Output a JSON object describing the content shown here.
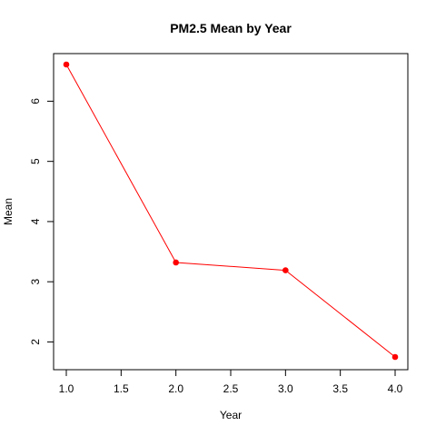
{
  "chart_data": {
    "type": "line",
    "title": "PM2.5 Mean by Year",
    "xlabel": "Year",
    "ylabel": "Mean",
    "x": [
      1.0,
      2.0,
      3.0,
      4.0
    ],
    "series": [
      {
        "values": [
          6.61,
          3.32,
          3.19,
          1.75
        ],
        "color": "#ff0000"
      }
    ],
    "xlim": [
      1.0,
      4.0
    ],
    "ylim": [
      1.75,
      6.61
    ],
    "xticks": [
      1.0,
      1.5,
      2.0,
      2.5,
      3.0,
      3.5,
      4.0
    ],
    "xtick_labels": [
      "1.0",
      "1.5",
      "2.0",
      "2.5",
      "3.0",
      "3.5",
      "4.0"
    ],
    "yticks": [
      2,
      3,
      4,
      5,
      6
    ],
    "ytick_labels": [
      "2",
      "3",
      "4",
      "5",
      "6"
    ],
    "grid": false,
    "legend": false,
    "marker": "filled-circle"
  }
}
